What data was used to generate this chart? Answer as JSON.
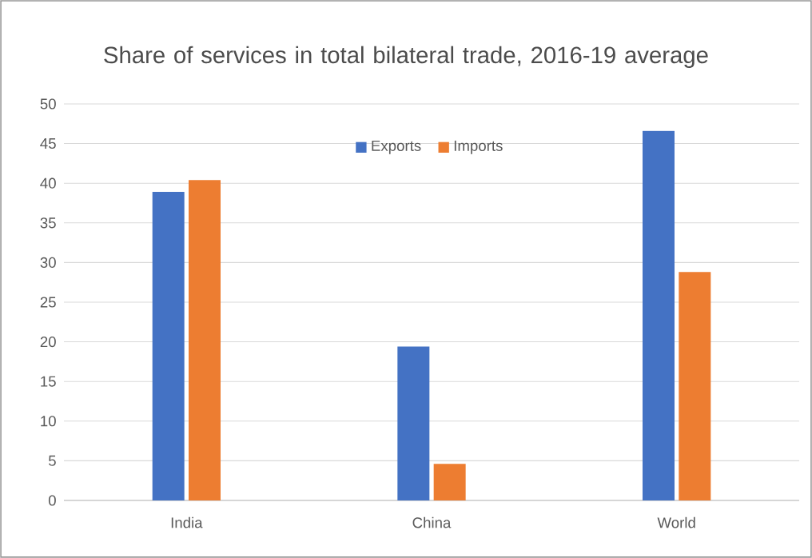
{
  "chart_data": {
    "type": "bar",
    "title": "Share of services in total bilateral trade, 2016-19 average",
    "categories": [
      "India",
      "China",
      "World"
    ],
    "series": [
      {
        "name": "Exports",
        "color": "#4472c4",
        "values": [
          38.9,
          19.4,
          46.6
        ]
      },
      {
        "name": "Imports",
        "color": "#ed7d31",
        "values": [
          40.4,
          4.6,
          28.8
        ]
      }
    ],
    "ylim": [
      0,
      50
    ],
    "yticks": [
      0,
      5,
      10,
      15,
      20,
      25,
      30,
      35,
      40,
      45,
      50
    ],
    "grid": "y",
    "legend": "top"
  }
}
